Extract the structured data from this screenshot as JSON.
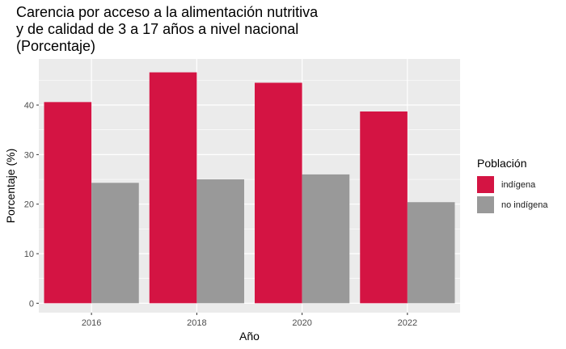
{
  "chart_data": {
    "type": "bar",
    "title": "Carencia por acceso a la alimentación nutritiva\ny de calidad de 3 a 17 años a nivel nacional\n(Porcentaje)",
    "xlabel": "Año",
    "ylabel": "Porcentaje (%)",
    "categories": [
      "2016",
      "2018",
      "2020",
      "2022"
    ],
    "series": [
      {
        "name": "indígena",
        "values": [
          40.6,
          46.6,
          44.5,
          38.7
        ],
        "color": "#d41443"
      },
      {
        "name": "no indígena",
        "values": [
          24.3,
          25.0,
          26.0,
          20.4
        ],
        "color": "#999999"
      }
    ],
    "ylim": [
      -1.9,
      49.3
    ],
    "yticks": [
      0,
      10,
      20,
      30,
      40
    ],
    "legend_title": "Población",
    "legend_position": "right",
    "grid": true,
    "panel_background": "#ebebeb"
  }
}
